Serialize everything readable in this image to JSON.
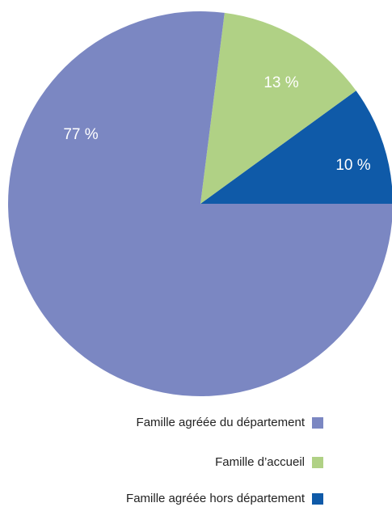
{
  "chart_data": {
    "type": "pie",
    "categories": [
      "Famille agréée du département",
      "Famille d’accueil",
      "Famille agréée hors département"
    ],
    "values": [
      77,
      13,
      10
    ],
    "value_labels": [
      "77 %",
      "13 %",
      "10 %"
    ],
    "colors": [
      "#7b87c2",
      "#b0d185",
      "#0f5aa8"
    ],
    "legend": "bottom"
  }
}
